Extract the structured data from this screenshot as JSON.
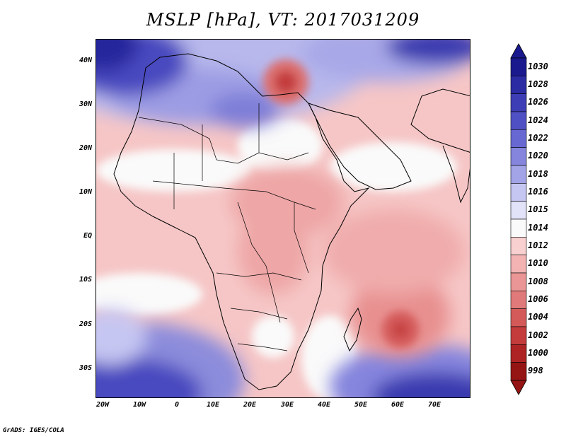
{
  "title": "MSLP [hPa], VT: 2017031209",
  "footer": "GrADS: IGES/COLA",
  "lat_labels": [
    "40N",
    "30N",
    "20N",
    "10N",
    "EQ",
    "10S",
    "20S",
    "30S"
  ],
  "lon_labels": [
    "20W",
    "10W",
    "0",
    "10E",
    "20E",
    "30E",
    "40E",
    "50E",
    "60E",
    "70E"
  ],
  "colorbar": {
    "levels": [
      "1030",
      "1028",
      "1026",
      "1024",
      "1022",
      "1020",
      "1018",
      "1016",
      "1015",
      "1014",
      "1012",
      "1010",
      "1008",
      "1006",
      "1004",
      "1002",
      "1000",
      "998"
    ],
    "colors": [
      "#1a1a8e",
      "#2b2ba3",
      "#3d3db5",
      "#5050c5",
      "#6868d2",
      "#8585de",
      "#a3a3e8",
      "#c6c6f2",
      "#e2e2f8",
      "#fafafa",
      "#f8d0d0",
      "#f3b3b3",
      "#eb9696",
      "#e07a7a",
      "#d45a5a",
      "#c43c3c",
      "#ae2424",
      "#951414"
    ]
  }
}
